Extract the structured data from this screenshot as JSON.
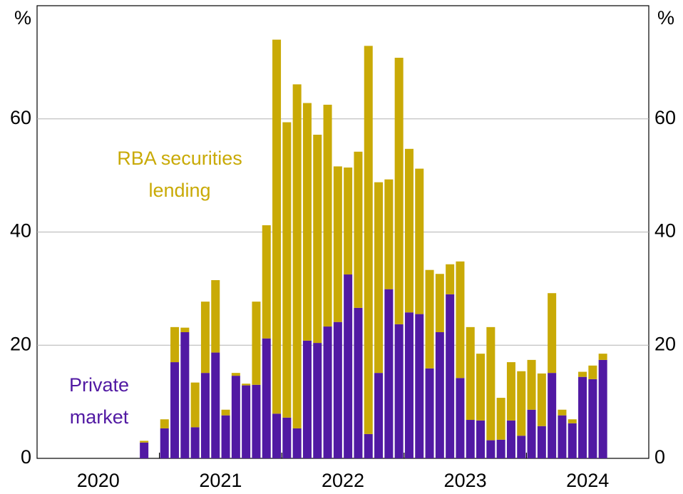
{
  "chart_data": {
    "type": "stacked_bar",
    "y_unit": "%",
    "categories": [
      null,
      null,
      null,
      null,
      null,
      null,
      null,
      null,
      null,
      null,
      null,
      null,
      null,
      null,
      null,
      null,
      null,
      null,
      null,
      null,
      null,
      null,
      null,
      null,
      null,
      null,
      null,
      null,
      null,
      null,
      null,
      null,
      null,
      null,
      null,
      null,
      null,
      null,
      null,
      null,
      null,
      null,
      null,
      null,
      null,
      null,
      null,
      null,
      null,
      null,
      null,
      null,
      null,
      null,
      null,
      null,
      null,
      null,
      null,
      null
    ],
    "year_labels": [
      "2020",
      "2021",
      "2022",
      "2023",
      "2024"
    ],
    "series": [
      {
        "name": "Private market",
        "color": "#5119a3",
        "values": [
          null,
          null,
          null,
          null,
          null,
          null,
          null,
          null,
          null,
          null,
          2.8,
          null,
          5.3,
          17.0,
          22.3,
          5.5,
          15.1,
          18.7,
          7.6,
          14.6,
          12.9,
          13.0,
          21.2,
          7.9,
          7.2,
          5.3,
          20.8,
          20.4,
          23.3,
          24.1,
          32.5,
          26.6,
          4.3,
          15.1,
          29.9,
          23.7,
          25.8,
          25.5,
          15.9,
          22.3,
          29.0,
          14.2,
          6.8,
          6.7,
          3.2,
          3.3,
          6.7,
          4.0,
          8.6,
          5.7,
          15.1,
          7.6,
          6.2,
          14.4,
          14.0,
          17.4,
          null,
          null,
          null,
          null
        ]
      },
      {
        "name": "RBA securities lending",
        "color": "#c9aa06",
        "values": [
          null,
          null,
          null,
          null,
          null,
          null,
          null,
          null,
          null,
          null,
          0.3,
          null,
          1.6,
          6.2,
          0.8,
          7.9,
          12.6,
          12.8,
          1.0,
          0.5,
          0.3,
          14.7,
          20.0,
          66.1,
          52.2,
          60.8,
          42.0,
          36.8,
          39.2,
          27.5,
          18.9,
          27.6,
          68.6,
          33.7,
          19.4,
          47.1,
          28.9,
          25.7,
          17.4,
          10.3,
          5.3,
          20.6,
          16.4,
          11.8,
          20.0,
          7.4,
          10.3,
          11.4,
          8.8,
          9.3,
          14.1,
          1.0,
          0.7,
          0.9,
          2.4,
          1.1,
          null,
          null,
          null,
          null
        ]
      }
    ],
    "annotations": [
      {
        "series": 1,
        "lines": [
          "RBA securities",
          "lending"
        ]
      },
      {
        "series": 0,
        "lines": [
          "Private",
          "market"
        ]
      }
    ],
    "ylim": [
      0,
      80
    ],
    "yticks": [
      0,
      20,
      40,
      60
    ],
    "grid": true
  }
}
